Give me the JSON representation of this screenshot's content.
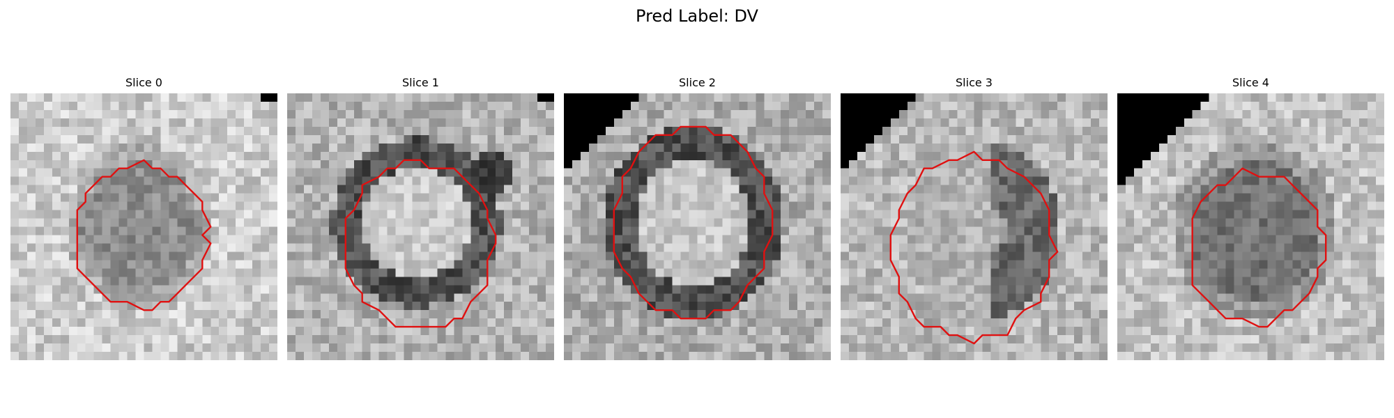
{
  "figure": {
    "title": "Pred Label: DV"
  },
  "panels": [
    {
      "title": "Slice 0",
      "image": "grayscale-mri-patch-slice-0",
      "overlay": "red-contour"
    },
    {
      "title": "Slice 1",
      "image": "grayscale-mri-patch-slice-1",
      "overlay": "red-contour"
    },
    {
      "title": "Slice 2",
      "image": "grayscale-mri-patch-slice-2",
      "overlay": "red-contour"
    },
    {
      "title": "Slice 3",
      "image": "grayscale-mri-patch-slice-3",
      "overlay": "red-contour"
    },
    {
      "title": "Slice 4",
      "image": "grayscale-mri-patch-slice-4",
      "overlay": "red-contour"
    }
  ],
  "colors": {
    "contour": "#e01010",
    "mask": "#000000",
    "background": "#ffffff"
  }
}
